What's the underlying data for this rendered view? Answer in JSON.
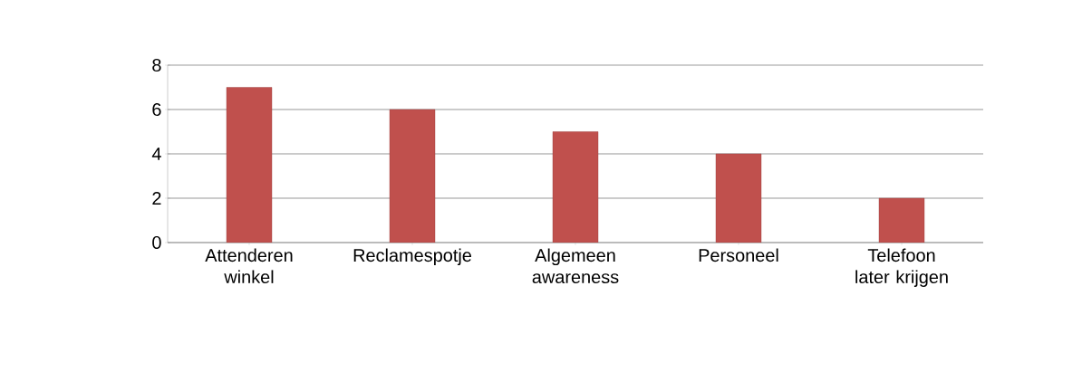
{
  "chart_data": {
    "type": "bar",
    "categories": [
      "Attenderen winkel",
      "Reclamespotje",
      "Algemeen awareness",
      "Personeel",
      "Telefoon later krijgen"
    ],
    "values": [
      7,
      6,
      5,
      4,
      2
    ],
    "color": "#c0504d",
    "ylim": [
      0,
      8
    ],
    "yticks": [
      0,
      2,
      4,
      6,
      8
    ],
    "grid": "y"
  }
}
